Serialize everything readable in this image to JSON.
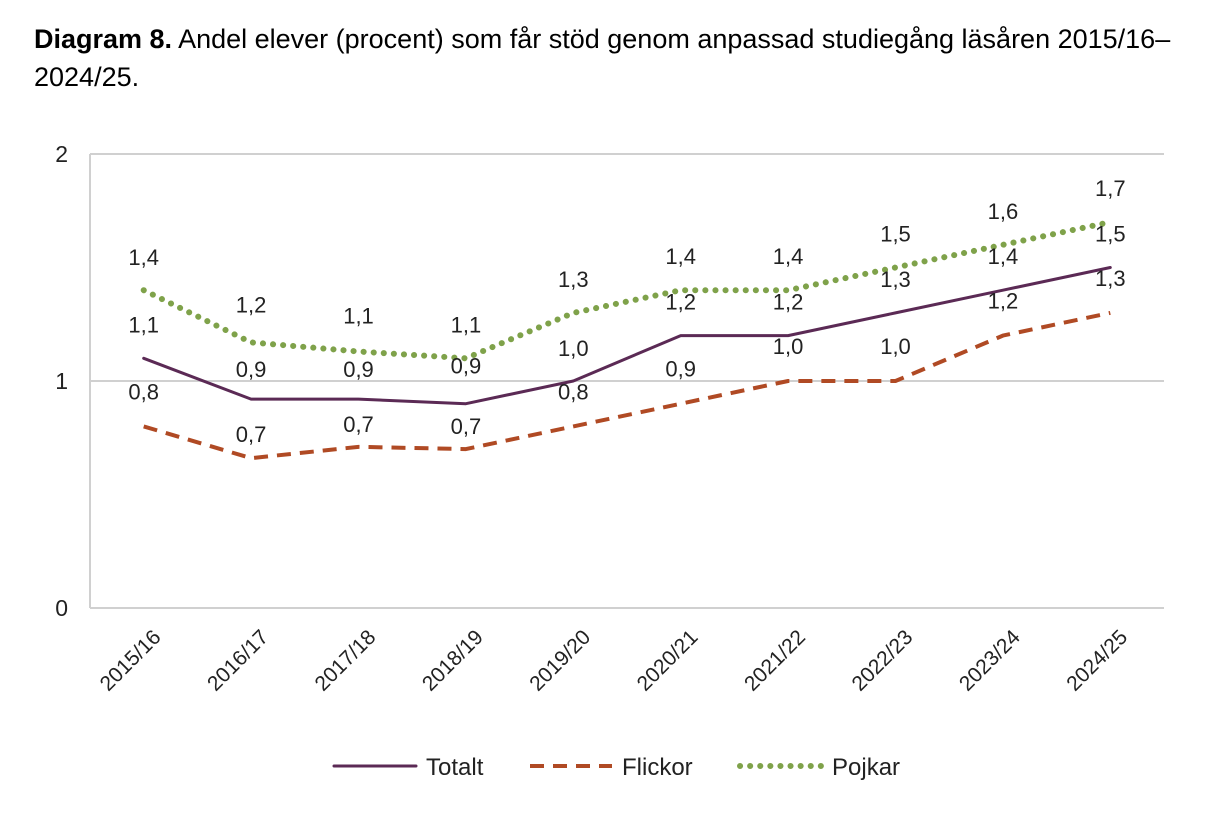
{
  "header": {
    "title_bold": "Diagram 8.",
    "title_rest": " Andel elever (procent) som får stöd genom anpassad studiegång läsåren 2015/16–2024/25."
  },
  "chart_data": {
    "type": "line",
    "title": "Diagram 8. Andel elever (procent) som får stöd genom anpassad studiegång läsåren 2015/16–2024/25.",
    "xlabel": "",
    "ylabel": "",
    "ylim": [
      0,
      2
    ],
    "yticks": [
      0,
      1,
      2
    ],
    "ytick_labels": [
      "0",
      "1",
      "2"
    ],
    "grid": true,
    "legend_position": "bottom",
    "categories": [
      "2015/16",
      "2016/17",
      "2017/18",
      "2018/19",
      "2019/20",
      "2020/21",
      "2021/22",
      "2022/23",
      "2023/24",
      "2024/25"
    ],
    "series": [
      {
        "name": "Totalt",
        "color": "#5b2a55",
        "style": "solid",
        "values": [
          1.1,
          0.92,
          0.92,
          0.9,
          1.0,
          1.2,
          1.2,
          1.3,
          1.4,
          1.5
        ],
        "labels": [
          "1,1",
          "0,9",
          "0,9",
          "0,9",
          "1,0",
          "1,2",
          "1,2",
          "1,3",
          "1,4",
          "1,5"
        ]
      },
      {
        "name": "Flickor",
        "color": "#b04a24",
        "style": "dashed",
        "values": [
          0.8,
          0.66,
          0.71,
          0.7,
          0.8,
          0.9,
          1.0,
          1.0,
          1.2,
          1.3
        ],
        "labels": [
          "0,8",
          "0,7",
          "0,7",
          "0,7",
          "0,8",
          "0,9",
          "1,0",
          "1,0",
          "1,2",
          "1,3"
        ]
      },
      {
        "name": "Pojkar",
        "color": "#7fa24a",
        "style": "dotted",
        "values": [
          1.4,
          1.17,
          1.13,
          1.1,
          1.3,
          1.4,
          1.4,
          1.5,
          1.6,
          1.7
        ],
        "labels": [
          "1,4",
          "1,2",
          "1,1",
          "1,1",
          "1,3",
          "1,4",
          "1,4",
          "1,5",
          "1,6",
          "1,7"
        ]
      }
    ]
  }
}
